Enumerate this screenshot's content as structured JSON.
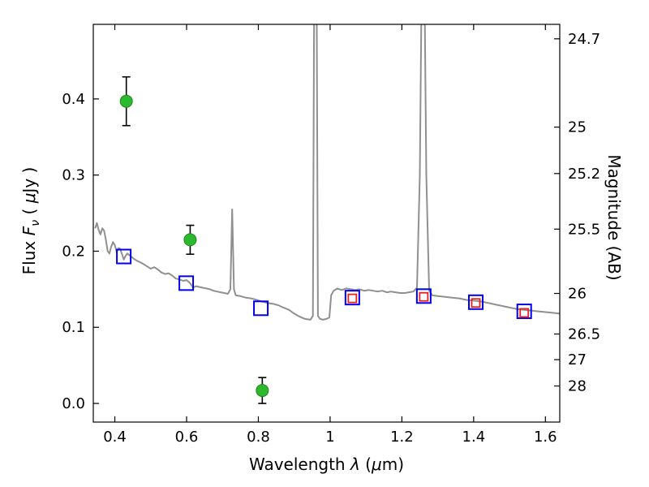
{
  "figure": {
    "background": "#ffffff",
    "frame_color": "#000000",
    "tick_color": "#000000"
  },
  "chart_data": {
    "type": "line+scatter",
    "title": "",
    "xlabel": "Wavelength λ (μm)",
    "xlabel_parts": [
      "Wavelength ",
      "λ",
      " (",
      "μ",
      "m)"
    ],
    "ylabel_left": "Flux Fν ( μJy )",
    "ylabel_left_parts": [
      "Flux ",
      "F",
      "ν",
      " ( ",
      "μ",
      "Jy )"
    ],
    "ylabel_right": "Magnitude (AB)",
    "xlim": [
      0.34,
      1.64
    ],
    "ylim": [
      -0.0245,
      0.498
    ],
    "grid": false,
    "legend": false,
    "x_ticks": [
      {
        "v": 0.4,
        "label": "0.4"
      },
      {
        "v": 0.6,
        "label": "0.6"
      },
      {
        "v": 0.8,
        "label": "0.8"
      },
      {
        "v": 1.0,
        "label": "1"
      },
      {
        "v": 1.2,
        "label": "1.2"
      },
      {
        "v": 1.4,
        "label": "1.4"
      },
      {
        "v": 1.6,
        "label": "1.6"
      }
    ],
    "y_ticks_left": [
      {
        "v": 0.0,
        "label": "0.0"
      },
      {
        "v": 0.1,
        "label": "0.1"
      },
      {
        "v": 0.2,
        "label": "0.2"
      },
      {
        "v": 0.3,
        "label": "0.3"
      },
      {
        "v": 0.4,
        "label": "0.4"
      }
    ],
    "y_ticks_right": [
      {
        "label": "24.7",
        "flux": 0.479
      },
      {
        "label": "25",
        "flux": 0.363
      },
      {
        "label": "25.2",
        "flux": 0.302
      },
      {
        "label": "25.5",
        "flux": 0.229
      },
      {
        "label": "26",
        "flux": 0.1445
      },
      {
        "label": "26.5",
        "flux": 0.0912
      },
      {
        "label": "27",
        "flux": 0.0575
      },
      {
        "label": "28",
        "flux": 0.0229
      }
    ],
    "series": [
      {
        "name": "model-spectrum",
        "type": "line",
        "color": "#909090",
        "width": 2,
        "points": [
          [
            0.345,
            0.23
          ],
          [
            0.35,
            0.237
          ],
          [
            0.355,
            0.228
          ],
          [
            0.36,
            0.222
          ],
          [
            0.365,
            0.23
          ],
          [
            0.37,
            0.227
          ],
          [
            0.375,
            0.215
          ],
          [
            0.38,
            0.2
          ],
          [
            0.385,
            0.197
          ],
          [
            0.39,
            0.206
          ],
          [
            0.395,
            0.212
          ],
          [
            0.4,
            0.208
          ],
          [
            0.405,
            0.199
          ],
          [
            0.41,
            0.204
          ],
          [
            0.415,
            0.203
          ],
          [
            0.42,
            0.196
          ],
          [
            0.425,
            0.189
          ],
          [
            0.43,
            0.194
          ],
          [
            0.435,
            0.197
          ],
          [
            0.44,
            0.195
          ],
          [
            0.448,
            0.192
          ],
          [
            0.456,
            0.189
          ],
          [
            0.464,
            0.187
          ],
          [
            0.472,
            0.185
          ],
          [
            0.48,
            0.183
          ],
          [
            0.49,
            0.18
          ],
          [
            0.5,
            0.177
          ],
          [
            0.51,
            0.179
          ],
          [
            0.52,
            0.176
          ],
          [
            0.53,
            0.172
          ],
          [
            0.54,
            0.17
          ],
          [
            0.55,
            0.171
          ],
          [
            0.56,
            0.168
          ],
          [
            0.57,
            0.164
          ],
          [
            0.58,
            0.163
          ],
          [
            0.59,
            0.161
          ],
          [
            0.6,
            0.162
          ],
          [
            0.61,
            0.158
          ],
          [
            0.618,
            0.152
          ],
          [
            0.626,
            0.154
          ],
          [
            0.635,
            0.153
          ],
          [
            0.645,
            0.152
          ],
          [
            0.655,
            0.151
          ],
          [
            0.665,
            0.15
          ],
          [
            0.675,
            0.148
          ],
          [
            0.685,
            0.147
          ],
          [
            0.695,
            0.146
          ],
          [
            0.705,
            0.145
          ],
          [
            0.715,
            0.144
          ],
          [
            0.722,
            0.15
          ],
          [
            0.727,
            0.255
          ],
          [
            0.732,
            0.15
          ],
          [
            0.737,
            0.142
          ],
          [
            0.75,
            0.141
          ],
          [
            0.765,
            0.139
          ],
          [
            0.78,
            0.138
          ],
          [
            0.795,
            0.136
          ],
          [
            0.81,
            0.134
          ],
          [
            0.825,
            0.132
          ],
          [
            0.84,
            0.131
          ],
          [
            0.855,
            0.129
          ],
          [
            0.87,
            0.126
          ],
          [
            0.885,
            0.123
          ],
          [
            0.9,
            0.118
          ],
          [
            0.915,
            0.114
          ],
          [
            0.93,
            0.111
          ],
          [
            0.945,
            0.11
          ],
          [
            0.952,
            0.115
          ],
          [
            0.956,
            0.6
          ],
          [
            0.962,
            0.6
          ],
          [
            0.966,
            0.115
          ],
          [
            0.972,
            0.111
          ],
          [
            0.98,
            0.11
          ],
          [
            0.99,
            0.111
          ],
          [
            0.998,
            0.113
          ],
          [
            1.003,
            0.142
          ],
          [
            1.01,
            0.148
          ],
          [
            1.02,
            0.151
          ],
          [
            1.032,
            0.149
          ],
          [
            1.045,
            0.151
          ],
          [
            1.058,
            0.15
          ],
          [
            1.07,
            0.149
          ],
          [
            1.082,
            0.15
          ],
          [
            1.095,
            0.148
          ],
          [
            1.108,
            0.149
          ],
          [
            1.12,
            0.148
          ],
          [
            1.132,
            0.147
          ],
          [
            1.145,
            0.148
          ],
          [
            1.158,
            0.146
          ],
          [
            1.17,
            0.147
          ],
          [
            1.182,
            0.146
          ],
          [
            1.195,
            0.145
          ],
          [
            1.208,
            0.145
          ],
          [
            1.22,
            0.146
          ],
          [
            1.232,
            0.147
          ],
          [
            1.242,
            0.152
          ],
          [
            1.25,
            0.3
          ],
          [
            1.256,
            0.6
          ],
          [
            1.262,
            0.6
          ],
          [
            1.268,
            0.3
          ],
          [
            1.276,
            0.148
          ],
          [
            1.285,
            0.142
          ],
          [
            1.3,
            0.141
          ],
          [
            1.32,
            0.14
          ],
          [
            1.34,
            0.139
          ],
          [
            1.36,
            0.138
          ],
          [
            1.38,
            0.136
          ],
          [
            1.4,
            0.135
          ],
          [
            1.42,
            0.134
          ],
          [
            1.44,
            0.132
          ],
          [
            1.46,
            0.13
          ],
          [
            1.48,
            0.128
          ],
          [
            1.5,
            0.126
          ],
          [
            1.52,
            0.124
          ],
          [
            1.54,
            0.123
          ],
          [
            1.56,
            0.122
          ],
          [
            1.58,
            0.121
          ],
          [
            1.6,
            0.12
          ],
          [
            1.62,
            0.119
          ],
          [
            1.64,
            0.118
          ]
        ]
      },
      {
        "name": "photometry-green-circles",
        "type": "scatter",
        "marker": "circle",
        "fill": "#2eb82e",
        "edge": "#1a8a1a",
        "radius": 7.5,
        "error_color": "#000000",
        "points": [
          {
            "x": 0.432,
            "y": 0.397,
            "yerr": 0.032
          },
          {
            "x": 0.61,
            "y": 0.215,
            "yerr": 0.019
          },
          {
            "x": 0.811,
            "y": 0.017,
            "yerr": 0.017
          }
        ]
      },
      {
        "name": "photometry-blue-squares",
        "type": "scatter",
        "marker": "square-open",
        "edge": "#0000ee",
        "size": 17,
        "stroke_width": 2,
        "points": [
          {
            "x": 0.425,
            "y": 0.193
          },
          {
            "x": 0.599,
            "y": 0.158
          },
          {
            "x": 0.807,
            "y": 0.125
          },
          {
            "x": 1.062,
            "y": 0.139
          },
          {
            "x": 1.261,
            "y": 0.141
          },
          {
            "x": 1.406,
            "y": 0.133
          },
          {
            "x": 1.541,
            "y": 0.121
          }
        ]
      },
      {
        "name": "photometry-red-squares",
        "type": "scatter",
        "marker": "square-open",
        "edge": "#e82020",
        "size": 10,
        "stroke_width": 1.8,
        "points": [
          {
            "x": 1.062,
            "y": 0.138
          },
          {
            "x": 1.261,
            "y": 0.14
          },
          {
            "x": 1.406,
            "y": 0.132
          },
          {
            "x": 1.541,
            "y": 0.119
          }
        ]
      }
    ]
  }
}
